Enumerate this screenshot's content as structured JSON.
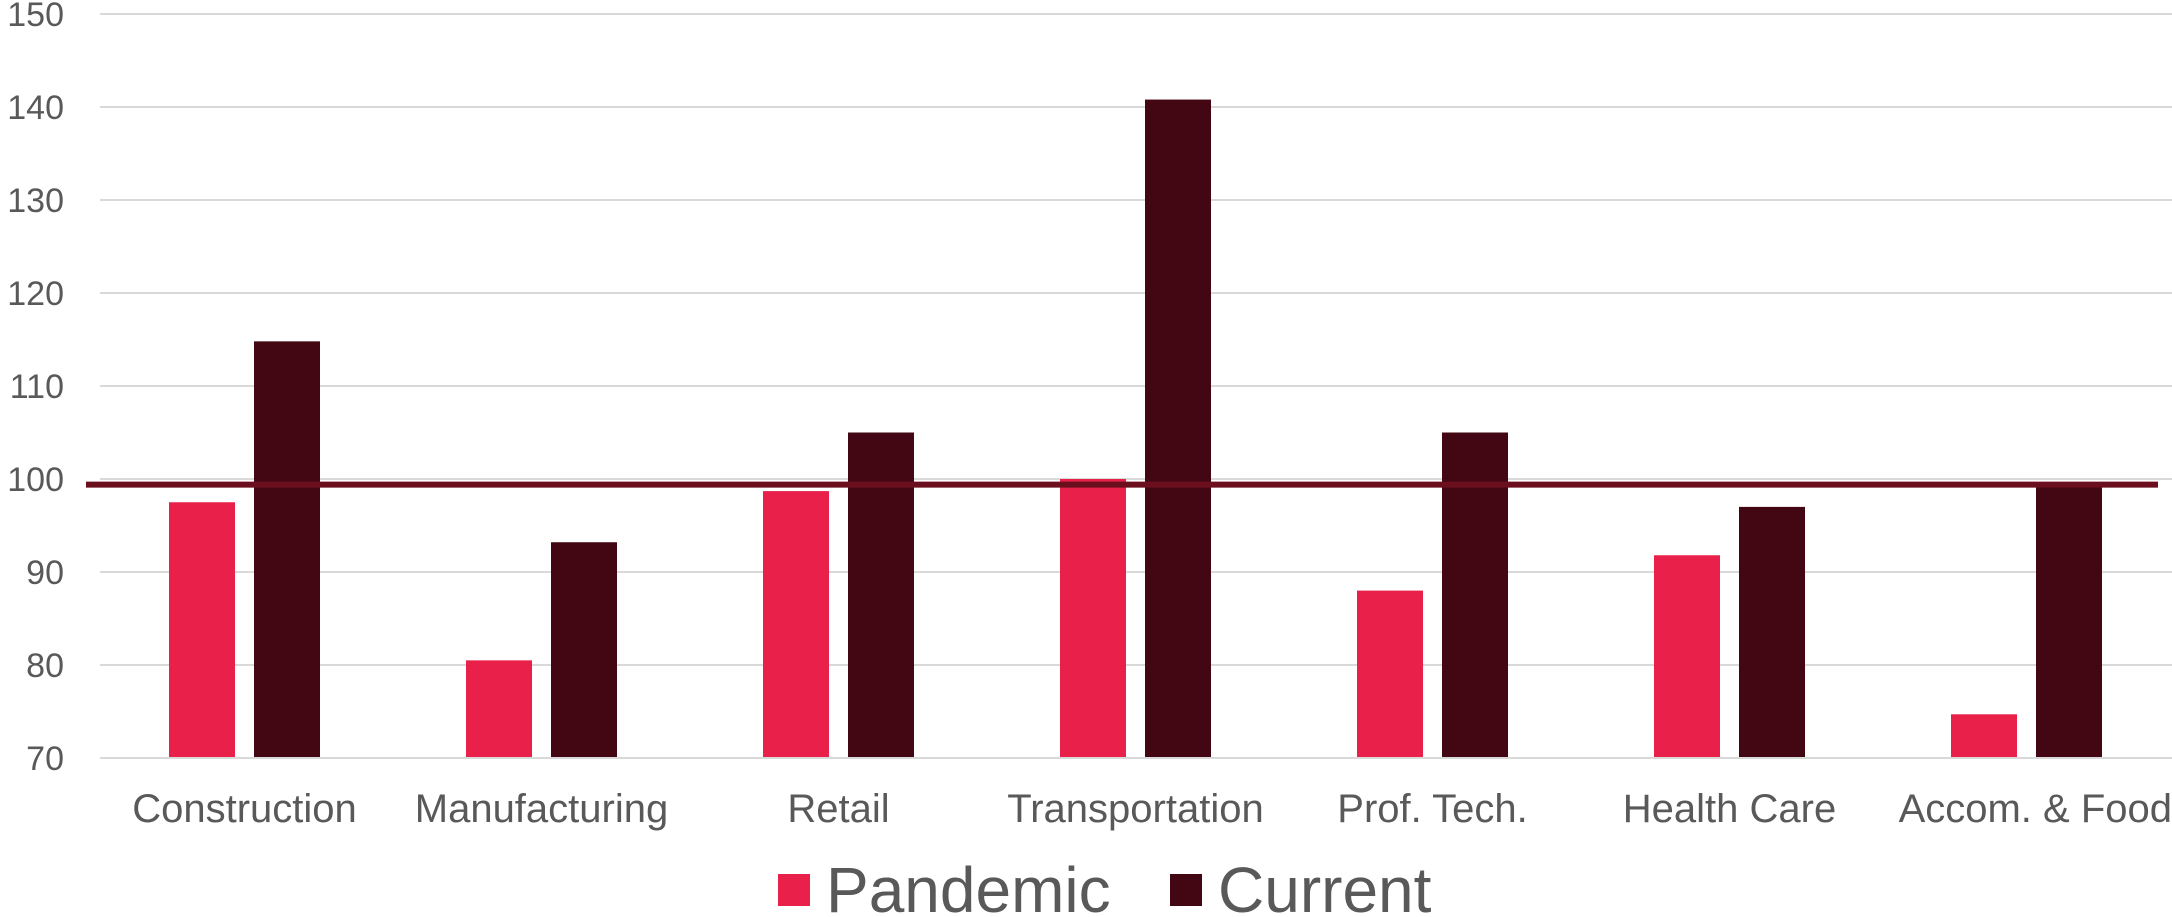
{
  "chart_data": {
    "type": "bar",
    "categories": [
      "Construction",
      "Manufacturing",
      "Retail",
      "Transportation",
      "Prof. Tech.",
      "Health Care",
      "Accom. & Food"
    ],
    "series": [
      {
        "name": "Pandemic",
        "color": "#E8204A",
        "values": [
          97.5,
          80.5,
          98.7,
          100.0,
          88.0,
          91.8,
          74.7
        ]
      },
      {
        "name": "Current",
        "color": "#420712",
        "values": [
          114.8,
          93.2,
          105.0,
          140.8,
          105.0,
          97.0,
          99.4
        ]
      }
    ],
    "reference_line": {
      "value": 99.4,
      "color": "#6B0F1E"
    },
    "ylim": [
      70,
      150
    ],
    "yticks": [
      "70",
      "80",
      "90",
      "100",
      "110",
      "120",
      "130",
      "140",
      "150"
    ],
    "grid": true,
    "legend_position": "bottom",
    "title": "",
    "xlabel": "",
    "ylabel": ""
  }
}
